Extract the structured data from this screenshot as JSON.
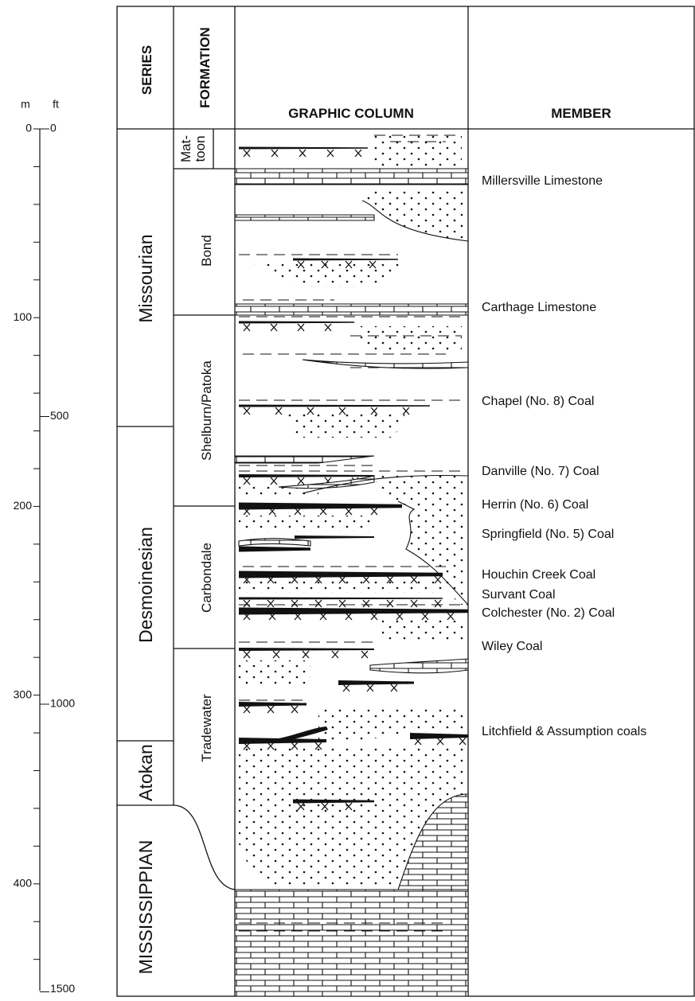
{
  "scale": {
    "units": [
      "m",
      "ft"
    ],
    "m_labels": [
      0,
      100,
      200,
      300,
      400
    ],
    "ft_labels": [
      0,
      500,
      1000,
      1500
    ]
  },
  "headers": {
    "series": "SERIES",
    "formation": "FORMATION",
    "graphic": "GRAPHIC COLUMN",
    "member": "MEMBER"
  },
  "series": [
    "Missourian",
    "Desmoinesian",
    "Atokan",
    "MISSISSIPPIAN"
  ],
  "formations": [
    "Mat-",
    "toon",
    "Bond",
    "Shelburn/Patoka",
    "Carbondale",
    "Tradewater"
  ],
  "members": [
    "Millersville Limestone",
    "Carthage Limestone",
    "Chapel (No. 8) Coal",
    "Danville (No. 7) Coal",
    "Herrin (No. 6) Coal",
    "Springfield (No. 5) Coal",
    "Houchin Creek Coal",
    "Survant Coal",
    "Colchester (No. 2) Coal",
    "Wiley Coal",
    "Litchfield & Assumption coals"
  ]
}
